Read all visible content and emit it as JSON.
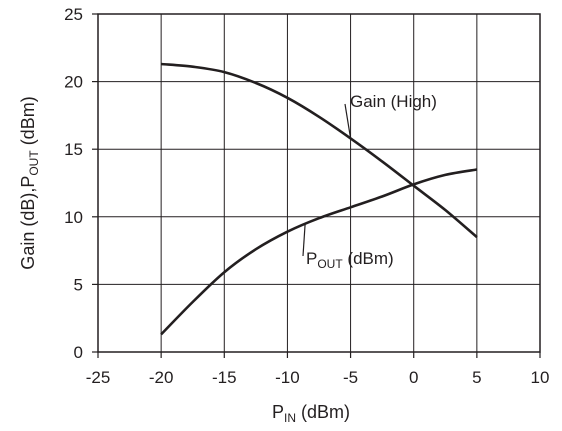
{
  "chart_data": {
    "type": "line",
    "x_ticks": [
      "-25",
      "-20",
      "-15",
      "-10",
      "-5",
      "0",
      "5",
      "10"
    ],
    "y_ticks": [
      "0",
      "5",
      "10",
      "15",
      "20",
      "25"
    ],
    "xlim": [
      -25,
      10
    ],
    "ylim": [
      0,
      25
    ],
    "grid": true,
    "xlabel": {
      "main": "P",
      "sub": "IN",
      "rest": " (dBm)"
    },
    "ylabel": {
      "part1": "Gain (dB),P",
      "sub": "OUT",
      "part2": " (dBm)"
    },
    "series": [
      {
        "name": "Gain (High)",
        "x": [
          -20,
          -17.5,
          -15,
          -12.5,
          -10,
          -7.5,
          -5,
          -2.5,
          0,
          2.5,
          5
        ],
        "y": [
          21.3,
          21.1,
          20.7,
          19.9,
          18.8,
          17.4,
          15.8,
          14.1,
          12.3,
          10.5,
          8.5
        ]
      },
      {
        "name": "P OUT (dBm)",
        "x": [
          -20,
          -17.5,
          -15,
          -12.5,
          -10,
          -7.5,
          -5,
          -2.5,
          0,
          2.5,
          5
        ],
        "y": [
          1.3,
          3.7,
          5.9,
          7.6,
          8.9,
          9.9,
          10.7,
          11.5,
          12.4,
          13.1,
          13.5
        ]
      }
    ],
    "annotations": [
      {
        "label": "Gain (High)",
        "series": 0,
        "at_x": -5
      },
      {
        "label": {
          "main": "P",
          "sub": "OUT",
          "rest": " (dBm)"
        },
        "series": 1,
        "at_x": -8.6
      }
    ]
  }
}
